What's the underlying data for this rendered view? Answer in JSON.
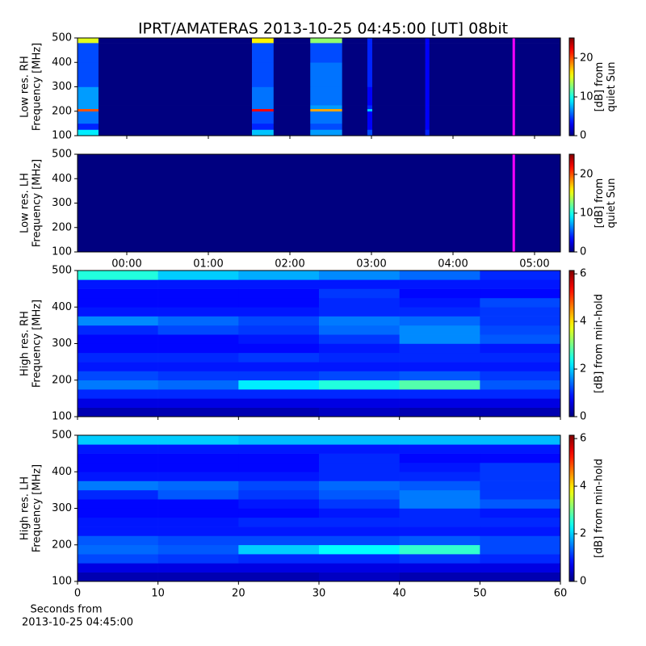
{
  "figure": {
    "title": "IPRT/AMATERAS 2013-10-25 04:45:00 [UT]   08bit",
    "xlabel": [
      "Seconds from",
      "2013-10-25 04:45:00"
    ]
  },
  "chart_data": [
    {
      "type": "heatmap",
      "colormap": "jet",
      "null_color": "#ff00ff",
      "ylabel": [
        "Low res. RH",
        "Frequency [MHz]"
      ],
      "colorbar_label": [
        "[dB] from",
        "quiet Sun"
      ],
      "x_edges": [
        -0.604,
        -0.347,
        1.535,
        1.8,
        2.25,
        2.64,
        2.95,
        3.01,
        3.66,
        3.71,
        4.73,
        4.76,
        5.317
      ],
      "y_edges": [
        100,
        125,
        150,
        200,
        210,
        225,
        300,
        400,
        480,
        500
      ],
      "z": [
        [
          9,
          0,
          8,
          0,
          7,
          0,
          5,
          0,
          4,
          0,
          null,
          0
        ],
        [
          4,
          0,
          4,
          0,
          5,
          0,
          3,
          0,
          3,
          0,
          null,
          0
        ],
        [
          6,
          0,
          5,
          0,
          6,
          0,
          3,
          0,
          3,
          0,
          null,
          0
        ],
        [
          20,
          0,
          22,
          0,
          18,
          0,
          8,
          0,
          3,
          0,
          null,
          0
        ],
        [
          7,
          0,
          6,
          0,
          7,
          0,
          4,
          0,
          3,
          0,
          null,
          0
        ],
        [
          7,
          0,
          6,
          0,
          6,
          0,
          3,
          0,
          3,
          0,
          null,
          0
        ],
        [
          5,
          0,
          5,
          0,
          6,
          0,
          4,
          0,
          3,
          0,
          null,
          0
        ],
        [
          5,
          0,
          5,
          0,
          5,
          0,
          4,
          0,
          3,
          0,
          null,
          0
        ],
        [
          15,
          0,
          16,
          0,
          13,
          0,
          4,
          0,
          3,
          0,
          null,
          0
        ]
      ],
      "xlim": [
        -0.604,
        5.317
      ],
      "ylim": [
        100,
        500
      ],
      "yticks": [
        100,
        200,
        300,
        400,
        500
      ],
      "clim": [
        0,
        25.2
      ],
      "cticks": [
        0,
        10,
        20
      ]
    },
    {
      "type": "heatmap",
      "colormap": "jet",
      "null_color": "#ff00ff",
      "ylabel": [
        "Low res. LH",
        "Frequency [MHz]"
      ],
      "colorbar_label": [
        "[dB] from",
        "quiet Sun"
      ],
      "x_edges": [
        -0.604,
        4.73,
        4.76,
        5.317
      ],
      "y_edges": [
        100,
        500
      ],
      "z": [
        [
          0,
          null,
          0
        ]
      ],
      "xlim": [
        -0.604,
        5.317
      ],
      "ylim": [
        100,
        500
      ],
      "yticks": [
        100,
        200,
        300,
        400,
        500
      ],
      "xticks": [
        {
          "value": 0,
          "label": "00:00"
        },
        {
          "value": 1,
          "label": "01:00"
        },
        {
          "value": 2,
          "label": "02:00"
        },
        {
          "value": 3,
          "label": "03:00"
        },
        {
          "value": 4,
          "label": "04:00"
        },
        {
          "value": 5,
          "label": "05:00"
        }
      ],
      "clim": [
        0,
        25.2
      ],
      "cticks": [
        0,
        10,
        20
      ]
    },
    {
      "type": "heatmap",
      "colormap": "jet",
      "ylabel": [
        "High res. RH",
        "Frequency [MHz]"
      ],
      "colorbar_label": [
        "[dB] from min-hold"
      ],
      "x_edges": [
        0,
        10,
        20,
        30,
        40,
        50,
        60
      ],
      "y_edges": [
        100,
        125,
        150,
        175,
        200,
        225,
        250,
        275,
        300,
        325,
        350,
        375,
        400,
        425,
        450,
        475,
        500
      ],
      "z": [
        [
          0.3,
          0.3,
          0.3,
          0.4,
          0.3,
          0.3
        ],
        [
          0.6,
          0.6,
          0.6,
          0.6,
          0.6,
          0.6
        ],
        [
          1.0,
          1.0,
          1.0,
          1.0,
          1.0,
          1.0
        ],
        [
          1.5,
          1.4,
          2.2,
          2.5,
          2.8,
          1.3
        ],
        [
          1.2,
          1.1,
          1.1,
          1.2,
          1.3,
          1.1
        ],
        [
          0.9,
          0.9,
          0.9,
          0.9,
          0.9,
          0.9
        ],
        [
          1.0,
          1.0,
          1.1,
          1.0,
          1.0,
          1.0
        ],
        [
          0.8,
          0.8,
          0.8,
          0.9,
          1.0,
          0.9
        ],
        [
          0.8,
          0.8,
          0.9,
          1.1,
          1.6,
          1.3
        ],
        [
          1.0,
          1.2,
          1.1,
          1.4,
          1.6,
          1.2
        ],
        [
          1.6,
          1.4,
          1.2,
          1.5,
          1.4,
          1.1
        ],
        [
          0.9,
          0.9,
          0.9,
          1.0,
          1.0,
          1.1
        ],
        [
          0.8,
          0.8,
          0.8,
          1.0,
          0.9,
          1.2
        ],
        [
          0.8,
          0.8,
          0.8,
          1.1,
          0.8,
          0.8
        ],
        [
          0.9,
          0.9,
          0.9,
          0.9,
          0.9,
          0.9
        ],
        [
          2.5,
          2.0,
          1.8,
          1.6,
          1.4,
          1.0
        ]
      ],
      "xlim": [
        0,
        60
      ],
      "ylim": [
        100,
        500
      ],
      "yticks": [
        100,
        200,
        300,
        400,
        500
      ],
      "clim": [
        0,
        6.14
      ],
      "cticks": [
        0,
        2,
        4,
        6
      ]
    },
    {
      "type": "heatmap",
      "colormap": "jet",
      "ylabel": [
        "High res. LH",
        "Frequency [MHz]"
      ],
      "colorbar_label": [
        "[dB] from min-hold"
      ],
      "x_edges": [
        0,
        10,
        20,
        30,
        40,
        50,
        60
      ],
      "y_edges": [
        100,
        125,
        150,
        175,
        200,
        225,
        250,
        275,
        300,
        325,
        350,
        375,
        400,
        425,
        450,
        475,
        500
      ],
      "z": [
        [
          0.3,
          0.3,
          0.3,
          0.4,
          0.3,
          0.3
        ],
        [
          0.6,
          0.6,
          0.6,
          0.6,
          0.6,
          0.6
        ],
        [
          1.2,
          1.1,
          1.0,
          1.0,
          1.1,
          1.0
        ],
        [
          1.4,
          1.3,
          2.0,
          2.3,
          2.6,
          1.2
        ],
        [
          1.3,
          1.2,
          1.2,
          1.2,
          1.3,
          1.2
        ],
        [
          0.9,
          0.9,
          0.9,
          0.9,
          0.9,
          0.9
        ],
        [
          0.9,
          0.9,
          1.0,
          1.0,
          1.0,
          1.0
        ],
        [
          0.8,
          0.8,
          0.8,
          0.9,
          1.0,
          0.9
        ],
        [
          0.8,
          0.8,
          0.9,
          1.1,
          1.5,
          1.3
        ],
        [
          1.0,
          1.3,
          1.1,
          1.3,
          1.5,
          1.1
        ],
        [
          1.5,
          1.4,
          1.2,
          1.4,
          1.3,
          1.1
        ],
        [
          0.9,
          0.9,
          0.9,
          1.0,
          1.0,
          1.1
        ],
        [
          0.8,
          0.8,
          0.8,
          1.0,
          0.9,
          1.1
        ],
        [
          0.8,
          0.8,
          0.8,
          1.0,
          0.8,
          0.8
        ],
        [
          0.9,
          0.9,
          0.9,
          0.9,
          0.9,
          0.9
        ],
        [
          2.0,
          2.0,
          1.9,
          1.9,
          1.9,
          1.9
        ]
      ],
      "xlim": [
        0,
        60
      ],
      "ylim": [
        100,
        500
      ],
      "yticks": [
        100,
        200,
        300,
        400,
        500
      ],
      "xticks": [
        0,
        10,
        20,
        30,
        40,
        50,
        60
      ],
      "clim": [
        0,
        6.14
      ],
      "cticks": [
        0,
        2,
        4,
        6
      ]
    }
  ]
}
